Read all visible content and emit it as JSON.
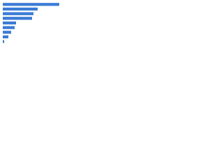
{
  "chart_data": {
    "type": "bar",
    "orientation": "horizontal",
    "categories": [
      null,
      null,
      null,
      null,
      null,
      null,
      null,
      null,
      null
    ],
    "values": [
      81,
      50,
      44,
      42,
      19,
      17,
      12,
      8,
      2
    ],
    "color": "#3a7bd5",
    "xlim": [
      0,
      100
    ]
  }
}
